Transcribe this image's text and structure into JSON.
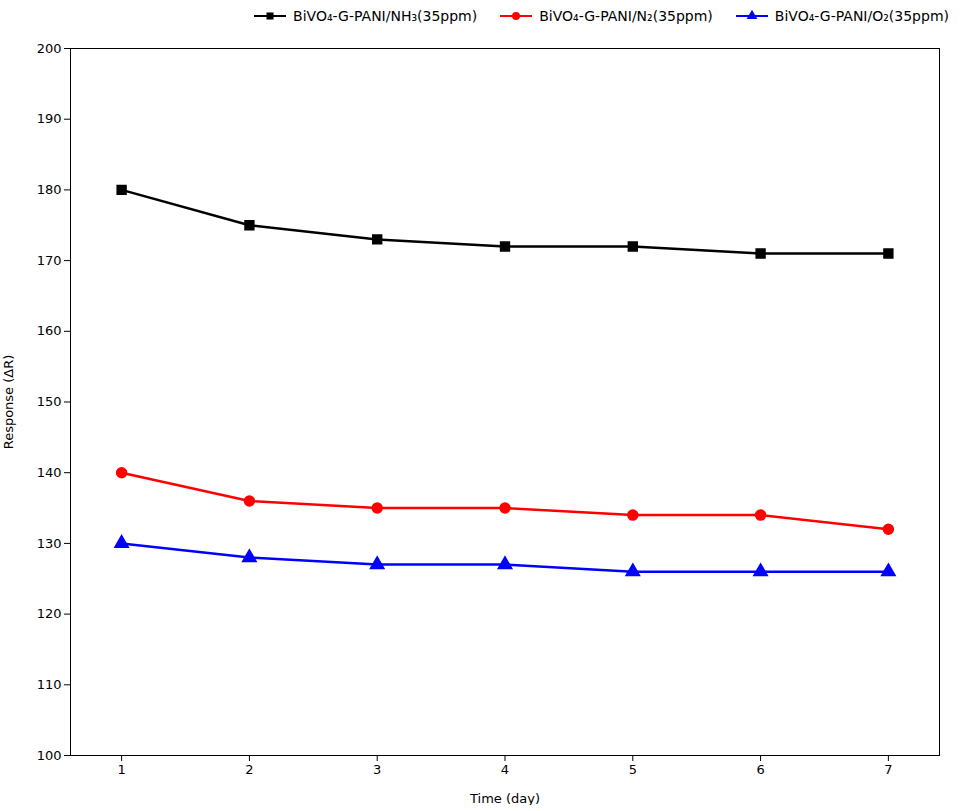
{
  "chart_data": {
    "type": "line",
    "x": [
      1,
      2,
      3,
      4,
      5,
      6,
      7
    ],
    "series": [
      {
        "name": "BiVO₄-G-PANI/NH₃(35ppm)",
        "color": "#000000",
        "marker": "square",
        "values": [
          180,
          175,
          173,
          172,
          172,
          171,
          171
        ]
      },
      {
        "name": "BiVO₄-G-PANI/N₂(35ppm)",
        "color": "#ff0000",
        "marker": "circle",
        "values": [
          140,
          136,
          135,
          135,
          134,
          134,
          132
        ]
      },
      {
        "name": "BiVO₄-G-PANI/O₂(35ppm)",
        "color": "#0000ff",
        "marker": "triangle",
        "values": [
          130,
          128,
          127,
          127,
          126,
          126,
          126
        ]
      }
    ],
    "xlabel": "Time (day)",
    "ylabel": "Response (ΔR)",
    "xlim": [
      0.6,
      7.4
    ],
    "ylim": [
      100,
      200
    ],
    "xticks": [
      1,
      2,
      3,
      4,
      5,
      6,
      7
    ],
    "yticks": [
      100,
      110,
      120,
      130,
      140,
      150,
      160,
      170,
      180,
      190,
      200
    ],
    "grid": false,
    "legend": "upper right"
  }
}
